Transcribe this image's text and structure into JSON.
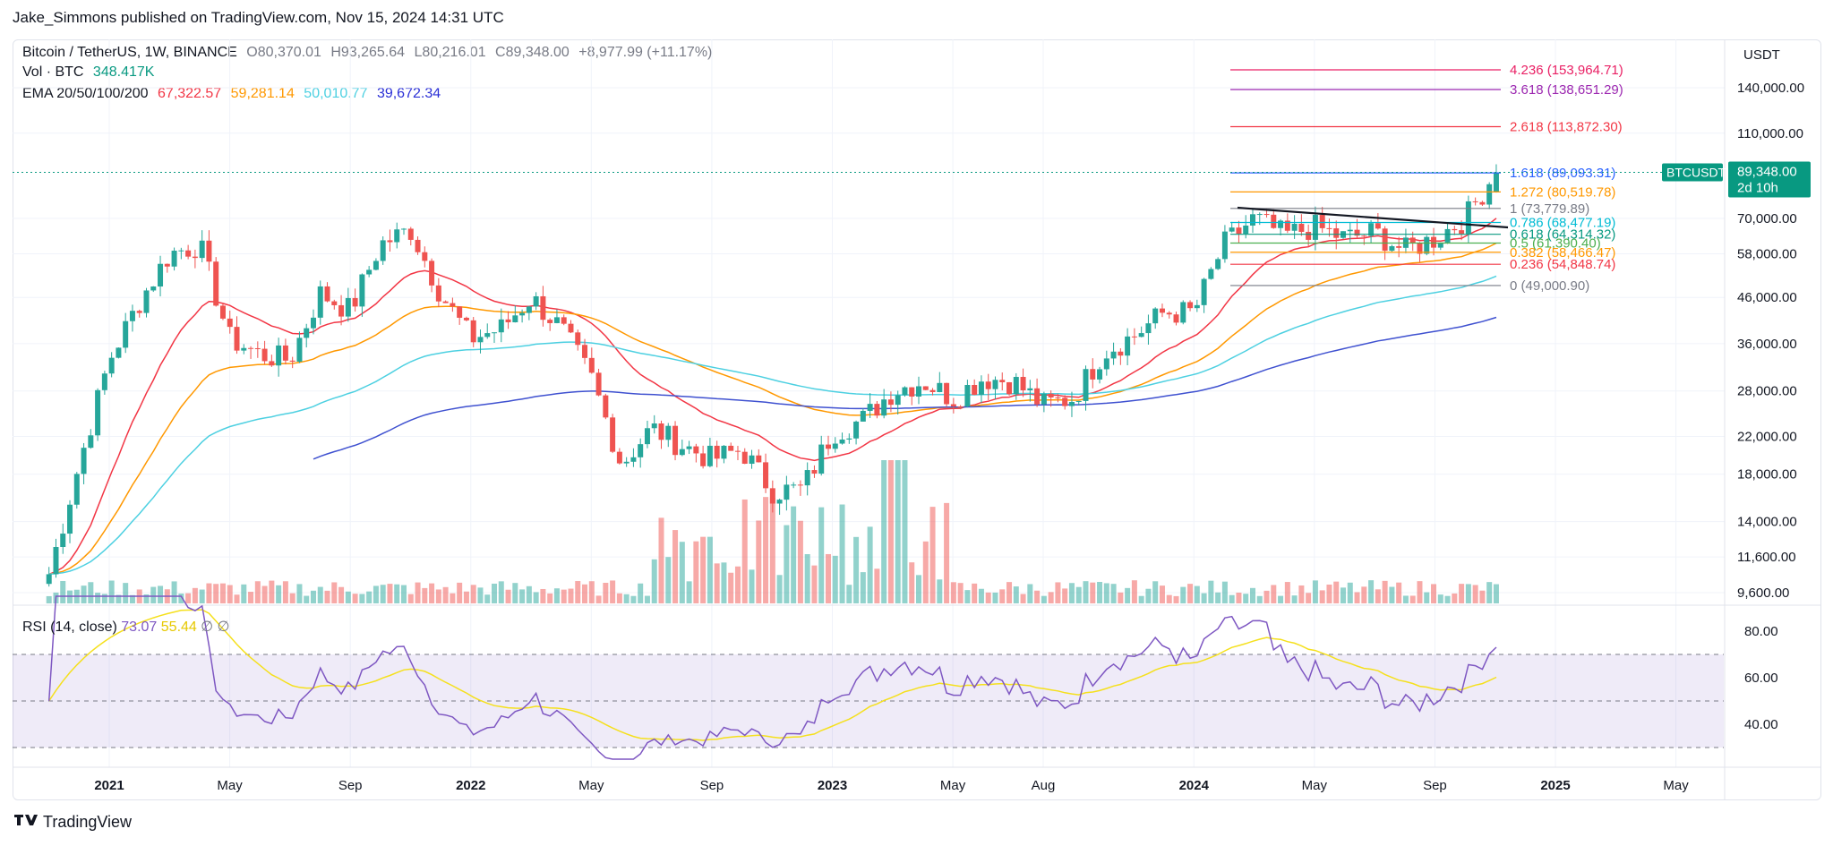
{
  "header": {
    "published": "Jake_Simmons published on TradingView.com, Nov 15, 2024 14:31 UTC"
  },
  "legend": {
    "symbol": "Bitcoin / TetherUS, 1W, BINANCE",
    "open": "O80,370.01",
    "high": "H93,265.64",
    "low": "L80,216.01",
    "close": "C89,348.00",
    "change": "+8,977.99 (+11.17%)",
    "vol_label": "Vol · BTC",
    "vol_value": "348.417K",
    "ema_label": "EMA 20/50/100/200",
    "ema20": "67,322.57",
    "ema50": "59,281.14",
    "ema100": "50,010.77",
    "ema200": "39,672.34"
  },
  "rsi_legend": {
    "label": "RSI (14, close)",
    "value": "73.07",
    "ma_value": "55.44",
    "extra1": "∅",
    "extra2": "∅"
  },
  "price_axis": {
    "currency": "USDT",
    "ticks": [
      "140,000.00",
      "110,000.00",
      "70,000.00",
      "58,000.00",
      "46,000.00",
      "36,000.00",
      "28,000.00",
      "22,000.00",
      "18,000.00",
      "14,000.00",
      "11,600.00",
      "9,600.00"
    ],
    "current_symbol": "BTCUSDT",
    "current_price": "89,348.00",
    "countdown": "2d 10h"
  },
  "rsi_axis": {
    "ticks": [
      "80.00",
      "60.00",
      "40.00"
    ]
  },
  "time_axis": {
    "labels": [
      "2021",
      "May",
      "Sep",
      "2022",
      "May",
      "Sep",
      "2023",
      "May",
      "Aug",
      "2024",
      "May",
      "Sep",
      "2025",
      "May"
    ]
  },
  "fib_levels": [
    {
      "ratio": "4.236",
      "price": "(153,964.71)",
      "color": "#e91e63"
    },
    {
      "ratio": "3.618",
      "price": "(138,651.29)",
      "color": "#9c27b0"
    },
    {
      "ratio": "2.618",
      "price": "(113,872.30)",
      "color": "#f23645"
    },
    {
      "ratio": "1.618",
      "price": "(89,093.31)",
      "color": "#2962ff"
    },
    {
      "ratio": "1.272",
      "price": "(80,519.78)",
      "color": "#ff9800"
    },
    {
      "ratio": "1",
      "price": "(73,779.89)",
      "color": "#787b86"
    },
    {
      "ratio": "0.786",
      "price": "(68,477.19)",
      "color": "#00bcd4"
    },
    {
      "ratio": "0.618",
      "price": "(64,314.32)",
      "color": "#089981"
    },
    {
      "ratio": "0.5",
      "price": "(61,390.40)",
      "color": "#4caf50"
    },
    {
      "ratio": "0.382",
      "price": "(58,466.47)",
      "color": "#ff9800"
    },
    {
      "ratio": "0.236",
      "price": "(54,848.74)",
      "color": "#f23645"
    },
    {
      "ratio": "0",
      "price": "(49,000.90)",
      "color": "#787b86"
    }
  ],
  "colors": {
    "up": "#26a69a",
    "down": "#ef5350",
    "ema20": "#f23645",
    "ema50": "#ff9800",
    "ema100": "#4dd0e1",
    "ema200": "#3f51d0",
    "rsi": "#7e57c2",
    "rsi_ma": "#f5e01d",
    "price_tag": "#089981"
  },
  "footer": {
    "brand": "TradingView"
  },
  "chart_data": {
    "type": "candlestick",
    "title": "Bitcoin / TetherUS, 1W, BINANCE",
    "y_scale": "log",
    "ylim": [
      9000,
      170000
    ],
    "x_range": [
      "2020-11",
      "2025-06"
    ],
    "grid": true,
    "price_path": [
      {
        "t": "2020-11",
        "close": 10600
      },
      {
        "t": "2020-12",
        "close": 19000
      },
      {
        "t": "2021-01",
        "close": 33000
      },
      {
        "t": "2021-02",
        "close": 45000
      },
      {
        "t": "2021-03",
        "close": 58000
      },
      {
        "t": "2021-04",
        "close": 61000
      },
      {
        "t": "2021-05",
        "close": 37000
      },
      {
        "t": "2021-06",
        "close": 34000
      },
      {
        "t": "2021-07",
        "close": 33000
      },
      {
        "t": "2021-08",
        "close": 47000
      },
      {
        "t": "2021-09",
        "close": 43000
      },
      {
        "t": "2021-10",
        "close": 61000
      },
      {
        "t": "2021-11",
        "close": 66000
      },
      {
        "t": "2021-12",
        "close": 47000
      },
      {
        "t": "2022-01",
        "close": 37000
      },
      {
        "t": "2022-02",
        "close": 39000
      },
      {
        "t": "2022-03",
        "close": 46000
      },
      {
        "t": "2022-04",
        "close": 39000
      },
      {
        "t": "2022-05",
        "close": 30000
      },
      {
        "t": "2022-06",
        "close": 19000
      },
      {
        "t": "2022-07",
        "close": 23000
      },
      {
        "t": "2022-08",
        "close": 21000
      },
      {
        "t": "2022-09",
        "close": 19500
      },
      {
        "t": "2022-10",
        "close": 20500
      },
      {
        "t": "2022-11",
        "close": 16500
      },
      {
        "t": "2022-12",
        "close": 16600
      },
      {
        "t": "2023-01",
        "close": 22500
      },
      {
        "t": "2023-02",
        "close": 24000
      },
      {
        "t": "2023-03",
        "close": 28000
      },
      {
        "t": "2023-04",
        "close": 29500
      },
      {
        "t": "2023-05",
        "close": 27000
      },
      {
        "t": "2023-06",
        "close": 30000
      },
      {
        "t": "2023-07",
        "close": 29500
      },
      {
        "t": "2023-08",
        "close": 26000
      },
      {
        "t": "2023-09",
        "close": 27000
      },
      {
        "t": "2023-10",
        "close": 34500
      },
      {
        "t": "2023-11",
        "close": 37500
      },
      {
        "t": "2023-12",
        "close": 42500
      },
      {
        "t": "2024-01",
        "close": 42500
      },
      {
        "t": "2024-02",
        "close": 61000
      },
      {
        "t": "2024-03",
        "close": 70000
      },
      {
        "t": "2024-04",
        "close": 64000
      },
      {
        "t": "2024-05",
        "close": 67000
      },
      {
        "t": "2024-06",
        "close": 63000
      },
      {
        "t": "2024-07",
        "close": 65000
      },
      {
        "t": "2024-08",
        "close": 59000
      },
      {
        "t": "2024-09",
        "close": 63000
      },
      {
        "t": "2024-10",
        "close": 70000
      },
      {
        "t": "2024-11",
        "close": 89348
      }
    ],
    "rsi_ylim": [
      25,
      95
    ]
  }
}
